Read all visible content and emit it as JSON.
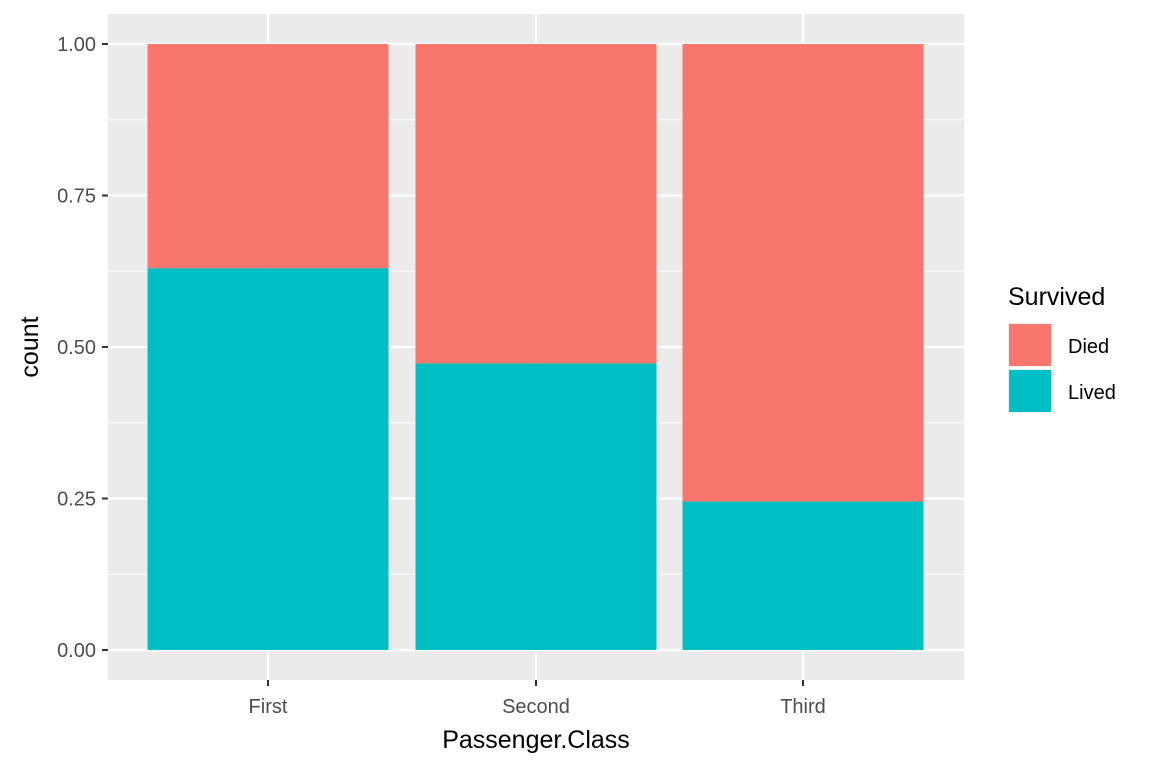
{
  "chart_data": {
    "type": "bar",
    "stacked": true,
    "categories": [
      "First",
      "Second",
      "Third"
    ],
    "series": [
      {
        "name": "Lived",
        "color": "#00BFC4",
        "values": [
          0.63,
          0.473,
          0.245
        ]
      },
      {
        "name": "Died",
        "color": "#F8766D",
        "values": [
          0.37,
          0.527,
          0.755
        ]
      }
    ],
    "xlabel": "Passenger.Class",
    "ylabel": "count",
    "ylim": [
      0,
      1.0
    ],
    "yticks": [
      "0.00",
      "0.25",
      "0.50",
      "0.75",
      "1.00"
    ],
    "grid": true,
    "legend_title": "Survived",
    "legend_order": [
      "Died",
      "Lived"
    ],
    "legend_position": "right",
    "panel_background": "#EBEBEB",
    "grid_color": "#FFFFFF"
  }
}
